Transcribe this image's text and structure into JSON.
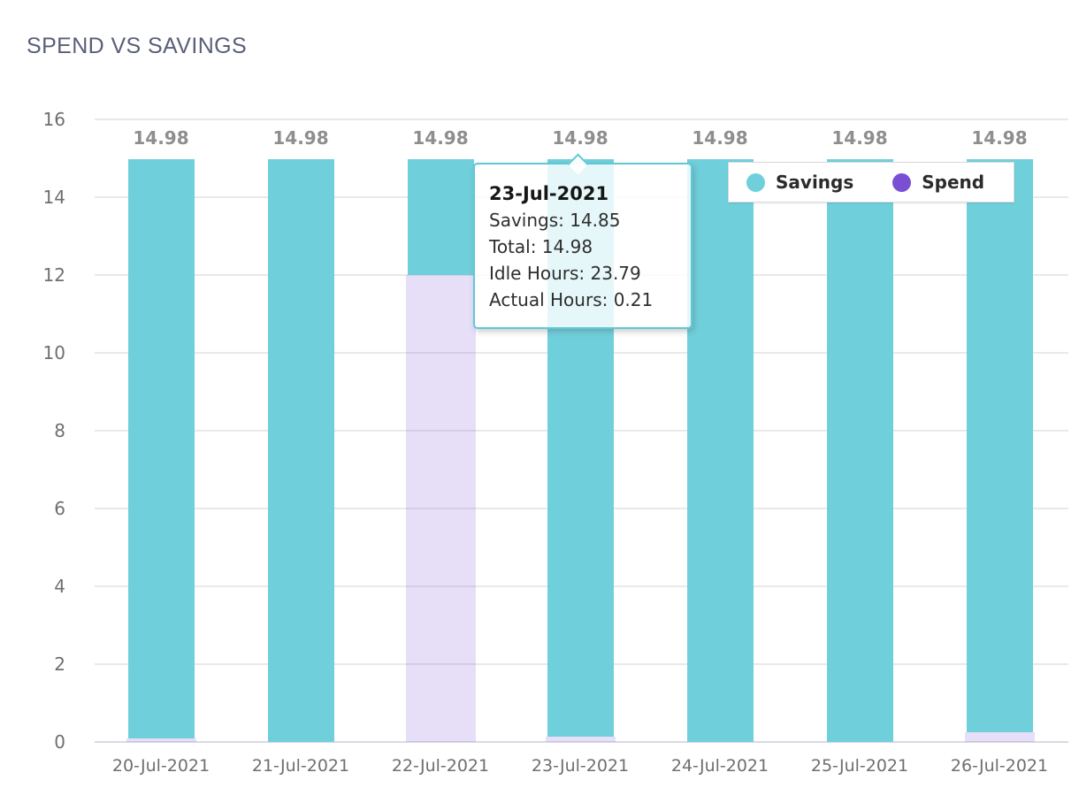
{
  "title": "SPEND VS SAVINGS",
  "colors": {
    "savings": "#6fd0dc",
    "spend": "#7a4fd3",
    "spend_fill": "rgba(122,79,211,0.18)",
    "grid": "#e9e9e9",
    "axis_zero_line": "#d9dae4",
    "tick_label": "#6f6f6f",
    "value_label": "#8e8e8e",
    "title_text": "#5a5f78",
    "tooltip_border": "#5fc9d7",
    "legend_border": "#d9d9d9"
  },
  "chart_data": {
    "type": "bar",
    "stacked": true,
    "title": "SPEND VS SAVINGS",
    "categories": [
      "20-Jul-2021",
      "21-Jul-2021",
      "22-Jul-2021",
      "23-Jul-2021",
      "24-Jul-2021",
      "25-Jul-2021",
      "26-Jul-2021"
    ],
    "series": [
      {
        "name": "Spend",
        "color": "#7a4fd3",
        "values": [
          0.1,
          0,
          12.0,
          0.13,
          0,
          0,
          0.25
        ]
      },
      {
        "name": "Savings",
        "color": "#6fd0dc",
        "values": [
          14.88,
          14.98,
          2.98,
          14.85,
          14.98,
          14.98,
          14.73
        ]
      }
    ],
    "totals": [
      14.98,
      14.98,
      14.98,
      14.98,
      14.98,
      14.98,
      14.98
    ],
    "value_labels": [
      "14.98",
      "14.98",
      "14.98",
      "14.98",
      "14.98",
      "14.98",
      "14.98"
    ],
    "xlabel": "",
    "ylabel": "",
    "ylim": [
      0,
      16
    ],
    "yticks": [
      0,
      2,
      4,
      6,
      8,
      10,
      12,
      14,
      16
    ],
    "grid": "horizontal",
    "legend_position": "top-right"
  },
  "legend": {
    "items": [
      {
        "label": "Savings",
        "color": "#6fd0dc"
      },
      {
        "label": "Spend",
        "color": "#7a4fd3"
      }
    ]
  },
  "tooltip": {
    "category": "23-Jul-2021",
    "title": "23-Jul-2021",
    "lines": [
      "Savings: 14.85",
      "Total: 14.98",
      "Idle Hours: 23.79",
      "Actual Hours: 0.21"
    ]
  }
}
